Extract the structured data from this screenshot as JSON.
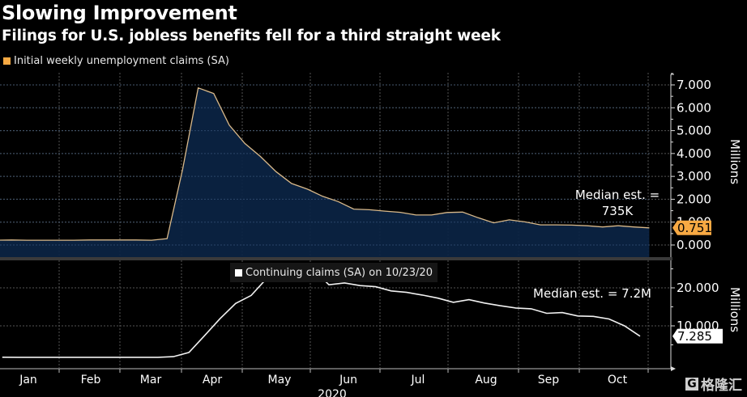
{
  "title": "Slowing Improvement",
  "subtitle": "Filings for U.S. jobless benefits fell for a third straight week",
  "watermark": {
    "logo_glyph": "G",
    "text": "格隆汇"
  },
  "chart_data": [
    {
      "type": "area",
      "legend": "Initial weekly unemployment claims (SA)",
      "series_color": "#f7a943",
      "fill_color": "#0b2444",
      "ylabel": "Millions",
      "ylim": [
        -0.4,
        7.5
      ],
      "yticks": [
        0,
        1,
        2,
        3,
        4,
        5,
        6,
        7
      ],
      "ytick_labels": [
        "0.000",
        "1.000",
        "2.000",
        "3.000",
        "4.000",
        "5.000",
        "6.000",
        "7.000"
      ],
      "last_value_label": "0.751",
      "annotation": [
        "Median est. =",
        "735K"
      ],
      "x_weeks": [
        0,
        1,
        2,
        3,
        4,
        5,
        6,
        7,
        8,
        9,
        10,
        11,
        12,
        13,
        14,
        15,
        16,
        17,
        18,
        19,
        20,
        21,
        22,
        23,
        24,
        25,
        26,
        27,
        28,
        29,
        30,
        31,
        32,
        33,
        34,
        35,
        36,
        37,
        38,
        39,
        40,
        41,
        42
      ],
      "values": [
        0.21,
        0.22,
        0.21,
        0.21,
        0.21,
        0.21,
        0.22,
        0.22,
        0.22,
        0.22,
        0.21,
        0.28,
        3.31,
        6.87,
        6.62,
        5.24,
        4.44,
        3.87,
        3.21,
        2.69,
        2.45,
        2.13,
        1.9,
        1.57,
        1.54,
        1.48,
        1.43,
        1.31,
        1.31,
        1.42,
        1.44,
        1.19,
        0.97,
        1.1,
        1.01,
        0.88,
        0.88,
        0.87,
        0.84,
        0.79,
        0.84,
        0.79,
        0.751
      ]
    },
    {
      "type": "line",
      "legend": "Continuing claims (SA) on 10/23/20",
      "series_color": "#ffffff",
      "ylabel": "Millions",
      "ylim": [
        0,
        27
      ],
      "yticks": [
        10,
        20
      ],
      "ytick_labels": [
        "10.000",
        "20.000"
      ],
      "last_value_label": "7.285",
      "annotation": [
        "Median est. = 7.2M"
      ],
      "x_weeks": [
        0,
        1,
        2,
        3,
        4,
        5,
        6,
        7,
        8,
        9,
        10,
        11,
        12,
        13,
        14,
        15,
        16,
        17,
        18,
        19,
        20,
        21,
        22,
        23,
        24,
        25,
        26,
        27,
        28,
        29,
        30,
        31,
        32,
        33,
        34,
        35,
        36,
        37,
        38,
        39,
        40,
        41
      ],
      "values": [
        1.75,
        1.72,
        1.72,
        1.72,
        1.72,
        1.72,
        1.72,
        1.72,
        1.72,
        1.72,
        1.72,
        1.9,
        3.0,
        7.4,
        11.9,
        15.9,
        18.0,
        22.5,
        22.6,
        24.0,
        24.8,
        20.8,
        21.3,
        20.6,
        20.3,
        19.2,
        18.8,
        18.1,
        17.3,
        16.2,
        16.9,
        16.0,
        15.3,
        14.7,
        14.5,
        13.3,
        13.5,
        12.6,
        12.5,
        11.8,
        10.0,
        7.285
      ]
    }
  ],
  "x_axis": {
    "months": [
      "Jan",
      "Feb",
      "Mar",
      "Apr",
      "May",
      "Jun",
      "Jul",
      "Aug",
      "Sep",
      "Oct"
    ],
    "year_label": "2020"
  }
}
